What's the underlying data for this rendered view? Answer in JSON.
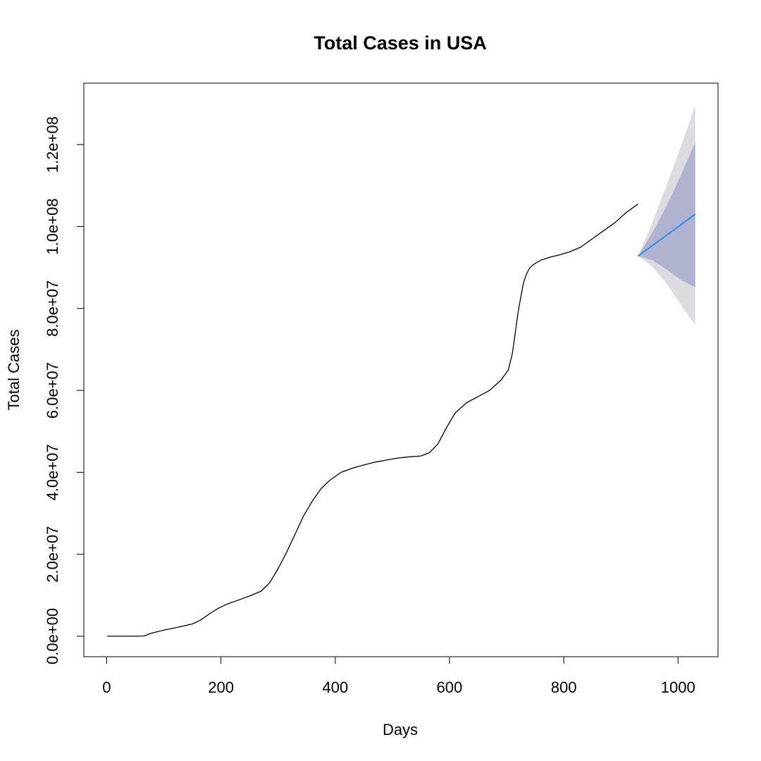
{
  "chart_data": {
    "type": "line",
    "title": "Total Cases in USA",
    "xlabel": "Days",
    "ylabel": "Total Cases",
    "xlim": [
      -40,
      1070
    ],
    "ylim": [
      -5000000,
      135000000
    ],
    "x_ticks": [
      0,
      200,
      400,
      600,
      800,
      1000
    ],
    "x_tick_labels": [
      "0",
      "200",
      "400",
      "600",
      "800",
      "1000"
    ],
    "y_ticks": [
      0,
      20000000,
      40000000,
      60000000,
      80000000,
      100000000,
      120000000
    ],
    "y_tick_labels": [
      "0.0e+00",
      "2.0e+07",
      "4.0e+07",
      "6.0e+07",
      "8.0e+07",
      "1.0e+08",
      "1.2e+08"
    ],
    "grid": false,
    "legend": "none",
    "series": [
      {
        "role": "observed",
        "color": "#000000",
        "x": [
          1,
          40,
          65,
          80,
          100,
          125,
          150,
          165,
          180,
          195,
          210,
          230,
          250,
          270,
          285,
          300,
          315,
          330,
          345,
          360,
          375,
          390,
          410,
          430,
          450,
          470,
          490,
          510,
          530,
          550,
          565,
          580,
          595,
          610,
          630,
          650,
          670,
          690,
          703,
          710,
          715,
          720,
          725,
          730,
          735,
          740,
          745,
          750,
          760,
          775,
          790,
          810,
          830,
          850,
          870,
          890,
          910,
          930
        ],
        "y": [
          0,
          0,
          50000,
          800000,
          1500000,
          2200000,
          3000000,
          4000000,
          5500000,
          6800000,
          7800000,
          8800000,
          9800000,
          11000000,
          13000000,
          16500000,
          20500000,
          25000000,
          29500000,
          33000000,
          36000000,
          38000000,
          40000000,
          41000000,
          41800000,
          42500000,
          43000000,
          43500000,
          43800000,
          44000000,
          44800000,
          47000000,
          51000000,
          54500000,
          57000000,
          58500000,
          60000000,
          62500000,
          65000000,
          69000000,
          74000000,
          79000000,
          83000000,
          86500000,
          88500000,
          89800000,
          90500000,
          91000000,
          91800000,
          92500000,
          93000000,
          93800000,
          95000000,
          97000000,
          99000000,
          101000000,
          103500000,
          105500000
        ]
      },
      {
        "role": "forecast",
        "color": "#2f8fe6",
        "x": [
          930,
          1030
        ],
        "y": [
          92800000,
          103000000
        ]
      }
    ],
    "forecast_interval_80": {
      "color": "#b0b3cf",
      "x": [
        930,
        955,
        980,
        1005,
        1030
      ],
      "lower": [
        92800000,
        91800000,
        89500000,
        87000000,
        85200000
      ],
      "upper": [
        92800000,
        98500000,
        105000000,
        112500000,
        120500000
      ]
    },
    "forecast_interval_95": {
      "color": "#dbdbe0",
      "x": [
        930,
        955,
        980,
        1005,
        1030
      ],
      "lower": [
        92800000,
        90200000,
        86000000,
        81000000,
        76000000
      ],
      "upper": [
        92800000,
        101000000,
        110000000,
        119500000,
        129500000
      ]
    }
  }
}
